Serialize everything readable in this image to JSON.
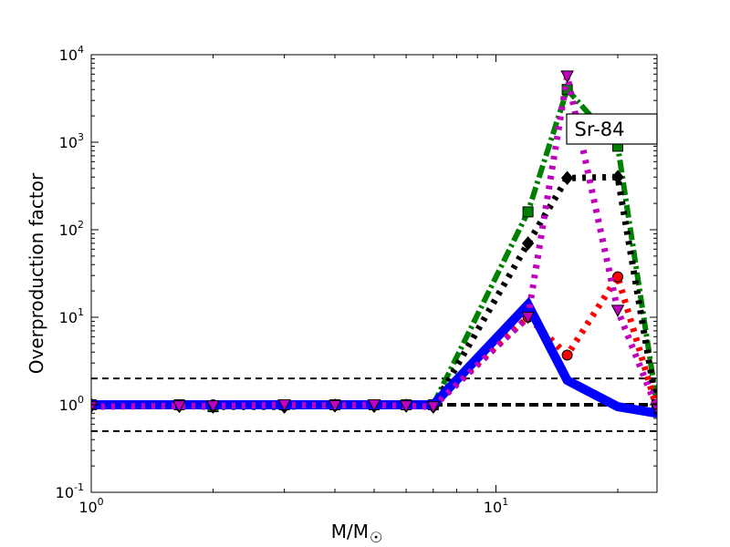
{
  "chart_data": {
    "type": "line",
    "title": "",
    "xlabel": "M/M",
    "xlabel_subscript": "☉",
    "ylabel": "Overproduction factor",
    "xscale": "log",
    "yscale": "log",
    "xlim": [
      1,
      25
    ],
    "ylim": [
      0.1,
      10000
    ],
    "xticks": [
      {
        "value": 1,
        "base": "10",
        "exp": "0"
      },
      {
        "value": 10,
        "base": "10",
        "exp": "1"
      }
    ],
    "yticks": [
      {
        "value": 0.1,
        "base": "10",
        "exp": "-1"
      },
      {
        "value": 1,
        "base": "10",
        "exp": "0"
      },
      {
        "value": 10,
        "base": "10",
        "exp": "1"
      },
      {
        "value": 100,
        "base": "10",
        "exp": "2"
      },
      {
        "value": 1000,
        "base": "10",
        "exp": "3"
      },
      {
        "value": 10000,
        "base": "10",
        "exp": "4"
      }
    ],
    "annotation": "Sr-84",
    "annotation_position": "upper-right",
    "grid": false,
    "reference_lines": [
      {
        "y": 2,
        "color": "#000000",
        "style": "dashed"
      },
      {
        "y": 1,
        "color": "#000000",
        "style": "dashed-bold"
      },
      {
        "y": 0.5,
        "color": "#000000",
        "style": "dashed"
      }
    ],
    "series": [
      {
        "color": "#008000",
        "style": "dashdot",
        "marker": "square",
        "x": [
          1,
          1.65,
          2,
          3,
          4,
          5,
          6,
          7,
          12,
          15,
          20,
          25
        ],
        "y": [
          1,
          1,
          0.95,
          1,
          1,
          1,
          1,
          1,
          160,
          4000,
          900,
          1
        ]
      },
      {
        "color": "#000000",
        "style": "dotted",
        "marker": "diamond",
        "x": [
          1,
          1.65,
          2,
          3,
          4,
          5,
          6,
          7,
          12,
          15,
          20,
          25
        ],
        "y": [
          1,
          0.97,
          0.95,
          0.95,
          0.98,
          0.97,
          0.98,
          0.95,
          70,
          390,
          400,
          0.9
        ]
      },
      {
        "color": "#ff0000",
        "style": "dotted",
        "marker": "circle",
        "x": [
          1,
          1.65,
          2,
          3,
          4,
          5,
          6,
          7,
          12,
          15,
          20,
          25
        ],
        "y": [
          1,
          1,
          1,
          1,
          1,
          1,
          1,
          1,
          10,
          3.7,
          29,
          0.9
        ]
      },
      {
        "color": "#0000ff",
        "style": "solid",
        "marker": "none",
        "x": [
          1,
          2,
          3,
          4,
          5,
          6,
          7,
          12,
          15,
          20,
          25
        ],
        "y": [
          1,
          1,
          1,
          1,
          1,
          1,
          1,
          14,
          1.9,
          0.95,
          0.8
        ]
      },
      {
        "color": "#bf00bf",
        "style": "dotted",
        "marker": "triangle-down",
        "x": [
          1,
          1.65,
          2,
          3,
          4,
          5,
          6,
          7,
          12,
          15,
          20,
          25
        ],
        "y": [
          0.95,
          0.97,
          0.97,
          1,
          0.98,
          1,
          0.97,
          0.95,
          10,
          5700,
          12,
          0.9
        ]
      }
    ]
  }
}
